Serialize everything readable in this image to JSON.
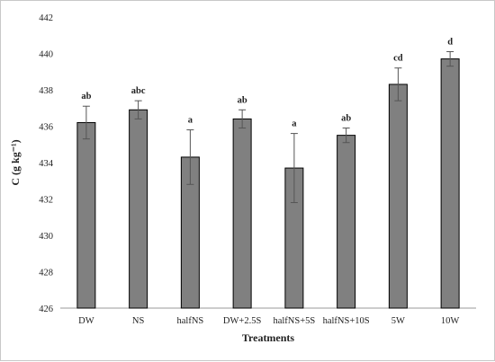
{
  "chart_data": {
    "type": "bar",
    "xlabel": "Treatments",
    "ylabel": "C (g kg⁻¹)",
    "ylim": [
      426,
      442
    ],
    "yticks": [
      426,
      428,
      430,
      432,
      434,
      436,
      438,
      440,
      442
    ],
    "categories": [
      "DW",
      "NS",
      "halfNS",
      "DW+2.5S",
      "halfNS+5S",
      "halfNS+10S",
      "5W",
      "10W"
    ],
    "values": [
      436.2,
      436.9,
      434.3,
      436.4,
      433.7,
      435.5,
      438.3,
      439.7
    ],
    "errors": [
      0.9,
      0.5,
      1.5,
      0.5,
      1.9,
      0.4,
      0.9,
      0.4
    ],
    "significance_letters": [
      "ab",
      "abc",
      "a",
      "ab",
      "a",
      "ab",
      "cd",
      "d"
    ],
    "bar_color": "#808080",
    "grid": false,
    "legend": "none"
  }
}
